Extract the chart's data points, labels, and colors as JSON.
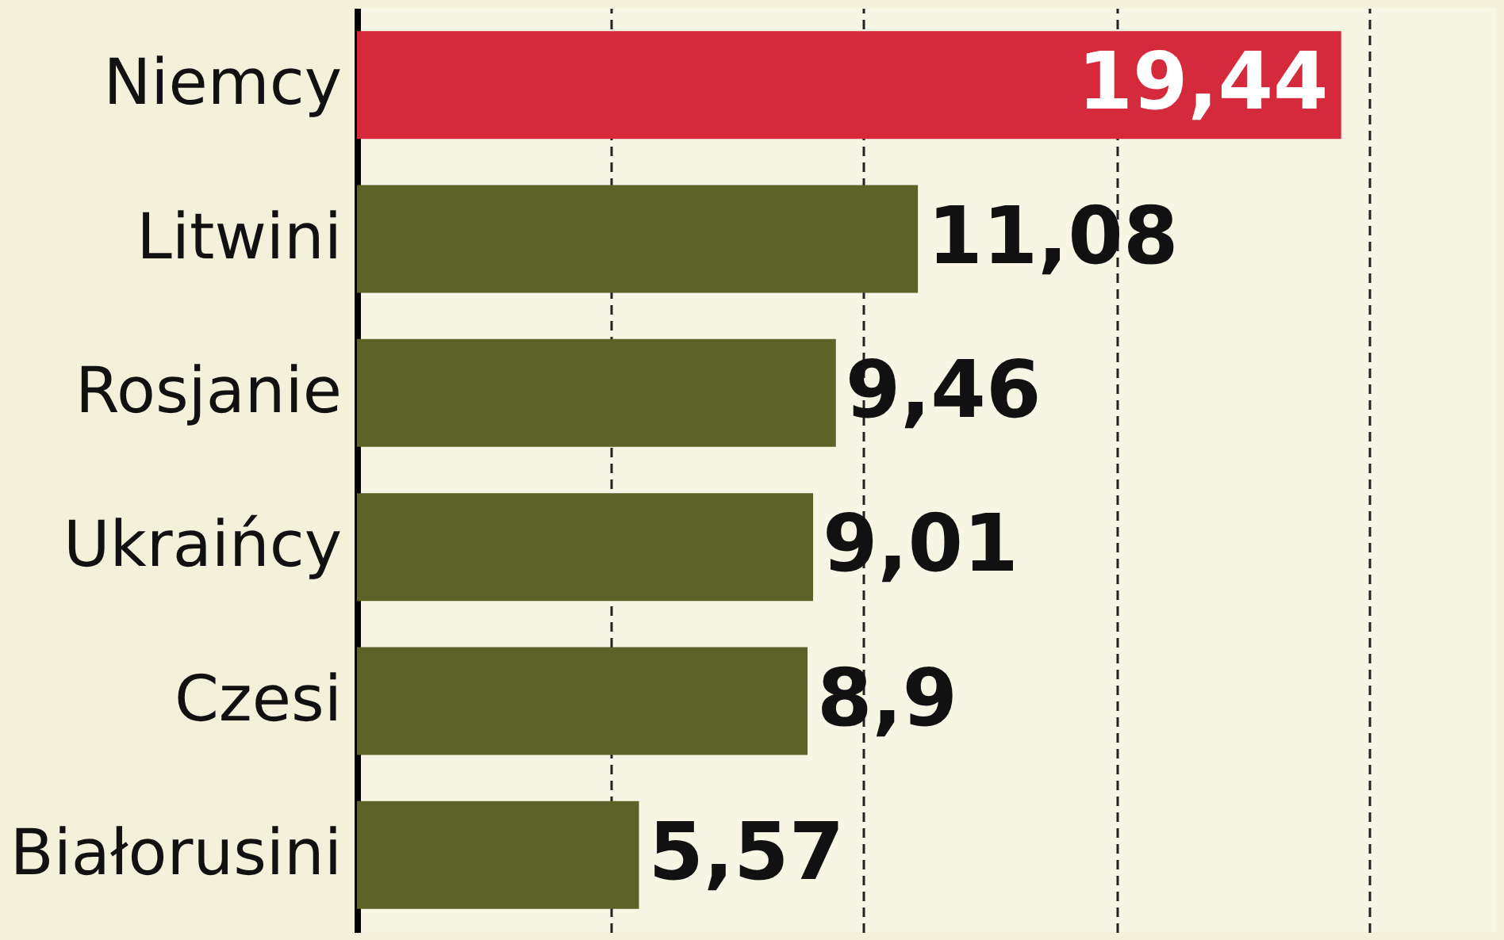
{
  "chart_data": {
    "type": "bar",
    "orientation": "horizontal",
    "categories": [
      "Niemcy",
      "Litwini",
      "Rosjanie",
      "Ukraińcy",
      "Czesi",
      "Białorusini"
    ],
    "values": [
      19.44,
      11.08,
      9.46,
      9.01,
      8.9,
      5.57
    ],
    "colors": [
      "#d42a3c",
      "#5b6329",
      "#5b6329",
      "#5b6329",
      "#5b6329",
      "#5b6329"
    ],
    "value_labels": [
      "19,44",
      "11,08",
      "9,46",
      "9,01",
      "8,9",
      "5,57"
    ],
    "xlim": [
      0,
      22.5
    ],
    "xticks": [
      {
        "value": 5,
        "label": null
      },
      {
        "value": 10,
        "label": null
      },
      {
        "value": 15,
        "label": null
      },
      {
        "value": 20,
        "label": null
      }
    ],
    "tick_labels": "y",
    "grid": "x"
  }
}
